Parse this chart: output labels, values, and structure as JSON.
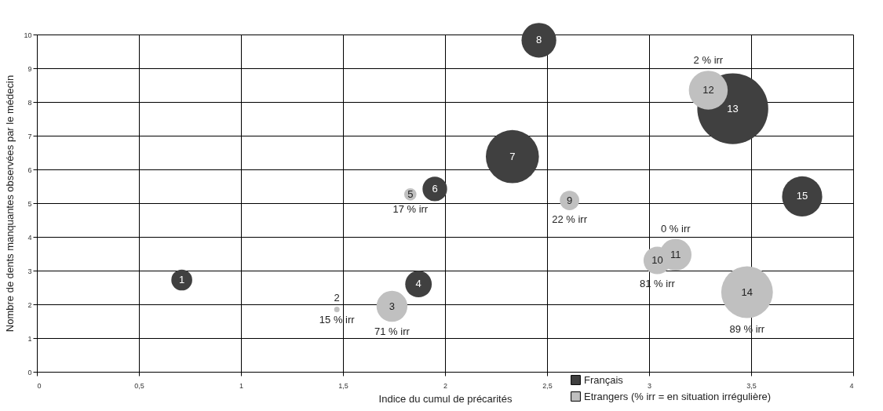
{
  "chart_data": {
    "type": "bubble",
    "xlabel": "Indice du cumul de précarités",
    "ylabel": "Nombre de dents manquantes observées par le médecin",
    "xlim": [
      0,
      4
    ],
    "xticks": [
      0,
      {
        "value": 0.5,
        "label": "0,5"
      },
      1,
      {
        "value": 1.5,
        "label": "1,5"
      },
      2,
      {
        "value": 2.5,
        "label": "2,5"
      },
      3,
      {
        "value": 3.5,
        "label": "3,5"
      },
      4
    ],
    "ylim": [
      0,
      10
    ],
    "yticks": [
      0,
      1,
      2,
      3,
      4,
      5,
      6,
      7,
      8,
      9,
      10
    ],
    "grid": true,
    "legend": "bottom",
    "series": [
      {
        "name": "Français",
        "color": "#404040",
        "x": [
          0.71,
          1.87,
          1.95,
          2.33,
          2.46,
          3.41,
          3.75
        ],
        "values": [
          2.72,
          2.6,
          5.42,
          6.38,
          9.83,
          7.8,
          5.2
        ],
        "sizes": [
          0.087,
          0.14,
          0.12,
          0.56,
          0.24,
          1,
          0.32
        ]
      },
      {
        "name": "Etrangers  (% irr = en situation irrégulière)",
        "color": "#c0c0c0",
        "x": [
          1.47,
          1.74,
          1.83,
          2.61,
          3.04,
          3.13,
          3.29,
          3.48
        ],
        "values": [
          1.85,
          1.94,
          5.26,
          5.08,
          3.3,
          3.47,
          8.35,
          2.36
        ],
        "sizes": [
          0.006,
          0.19,
          0.03,
          0.075,
          0.15,
          0.2,
          0.3,
          0.53
        ]
      }
    ],
    "annotations": [
      {
        "text": "1",
        "x": 0.71,
        "y": 2.72
      },
      {
        "text": "2",
        "x": 1.47,
        "y": 1.85
      },
      {
        "text": "3",
        "x": 1.74,
        "y": 1.94
      },
      {
        "text": "4",
        "x": 1.87,
        "y": 2.6
      },
      {
        "text": "5",
        "x": 1.83,
        "y": 5.26
      },
      {
        "text": "6",
        "x": 1.95,
        "y": 5.42
      },
      {
        "text": "7",
        "x": 2.33,
        "y": 6.38
      },
      {
        "text": "8",
        "x": 2.46,
        "y": 9.83
      },
      {
        "text": "9",
        "x": 2.61,
        "y": 5.08
      },
      {
        "text": "10",
        "x": 3.04,
        "y": 3.3
      },
      {
        "text": "11",
        "x": 3.13,
        "y": 3.47
      },
      {
        "text": "12",
        "x": 3.29,
        "y": 8.35
      },
      {
        "text": "13",
        "x": 3.41,
        "y": 7.8
      },
      {
        "text": "14",
        "x": 3.48,
        "y": 2.36
      },
      {
        "text": "15",
        "x": 3.75,
        "y": 5.2
      },
      {
        "text": "15 % irr",
        "x": 1.47,
        "y": 1.85
      },
      {
        "text": "71 % irr",
        "x": 1.74,
        "y": 1.94
      },
      {
        "text": "17 % irr",
        "x": 1.83,
        "y": 5.26
      },
      {
        "text": "22 % irr",
        "x": 2.61,
        "y": 5.08
      },
      {
        "text": "81 % irr",
        "x": 3.04,
        "y": 3.3
      },
      {
        "text": "0 % irr",
        "x": 3.13,
        "y": 3.47
      },
      {
        "text": "2 % irr",
        "x": 3.29,
        "y": 8.35
      },
      {
        "text": "89 % irr",
        "x": 3.48,
        "y": 2.36
      }
    ]
  }
}
